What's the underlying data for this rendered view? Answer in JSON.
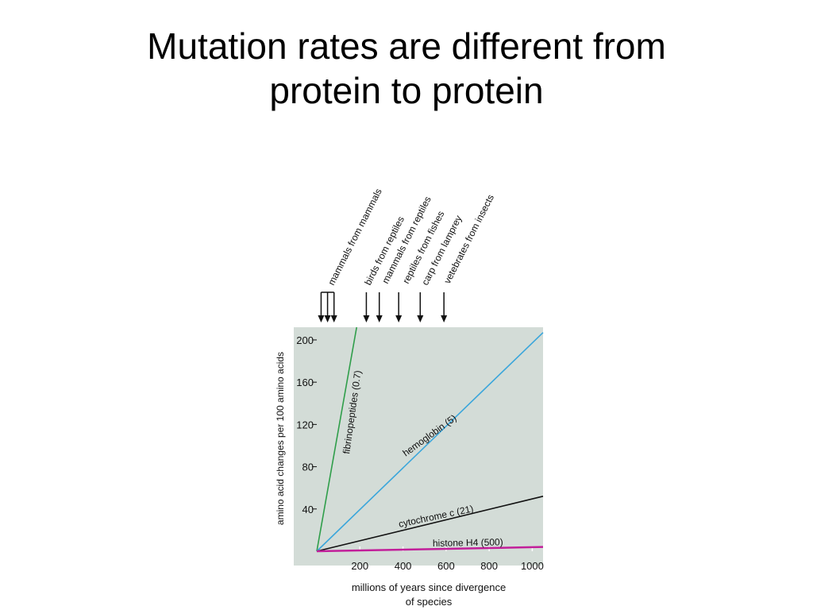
{
  "title": {
    "line1": "Mutation rates are different from",
    "line2": "protein to protein"
  },
  "chart_data": {
    "type": "line",
    "xlabel_line1": "millions of years since divergence",
    "xlabel_line2": "of species",
    "ylabel": "amino acid changes per 100 amino acids",
    "xlim": [
      0,
      1050
    ],
    "ylim": [
      0,
      212
    ],
    "x_ticks": [
      200,
      400,
      600,
      800,
      1000
    ],
    "y_ticks": [
      40,
      80,
      120,
      160,
      200
    ],
    "grid": false,
    "colors": {
      "plot_background": "#d3dcd7",
      "fibrinopeptides": "#2f9e4a",
      "hemoglobin": "#3aa6db",
      "cytochrome": "#111111",
      "histone": "#c21f9a",
      "arrows": "#111111"
    },
    "series": [
      {
        "name": "fibrinopeptides (0.7)",
        "key": "fibrinopeptides",
        "x": [
          0,
          185
        ],
        "y": [
          0,
          212
        ]
      },
      {
        "name": "hemoglobin (5)",
        "key": "hemoglobin",
        "x": [
          0,
          1050
        ],
        "y": [
          0,
          207
        ]
      },
      {
        "name": "cytochrome c (21)",
        "key": "cytochrome",
        "x": [
          0,
          1050
        ],
        "y": [
          0,
          52
        ]
      },
      {
        "name": "histone H4 (500)",
        "key": "histone",
        "x": [
          0,
          1050
        ],
        "y": [
          0,
          4
        ]
      }
    ],
    "divergence_events": [
      {
        "label": "mammals from mammals",
        "x": [
          20,
          50,
          80
        ]
      },
      {
        "label": "birds from reptiles",
        "x": [
          230
        ]
      },
      {
        "label": "mammals from reptiles",
        "x": [
          290
        ]
      },
      {
        "label": "reptiles from fishes",
        "x": [
          380
        ]
      },
      {
        "label": "carp from lamprey",
        "x": [
          480
        ]
      },
      {
        "label": "vetebrates from insects",
        "x": [
          590
        ]
      }
    ]
  }
}
